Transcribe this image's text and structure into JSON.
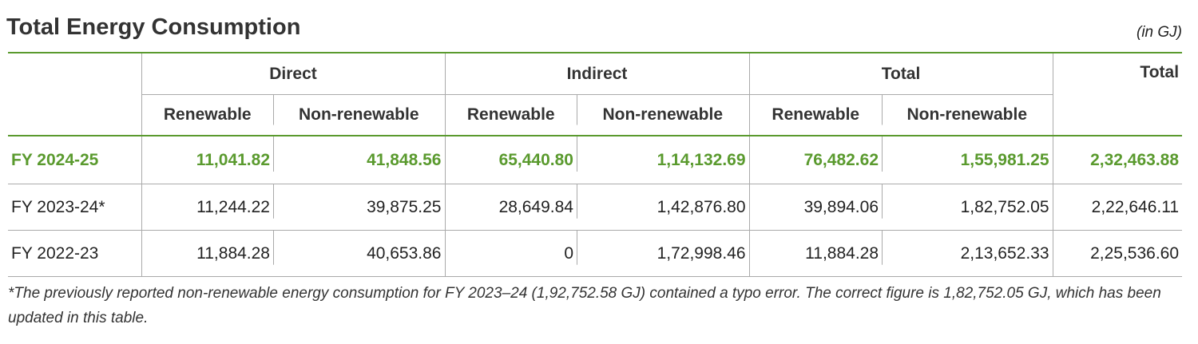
{
  "header": {
    "title": "Total Energy Consumption",
    "unit": "(in GJ)"
  },
  "table": {
    "groups": [
      "Direct",
      "Indirect",
      "Total",
      "Total"
    ],
    "subheaders": [
      "Renewable",
      "Non-renewable",
      "Renewable",
      "Non-renewable",
      "Renewable",
      "Non-renewable"
    ],
    "rows": [
      [
        "FY 2024-25",
        "11,041.82",
        "41,848.56",
        "65,440.80",
        "1,14,132.69",
        "76,482.62",
        "1,55,981.25",
        "2,32,463.88"
      ],
      [
        "FY 2023-24*",
        "11,244.22",
        "39,875.25",
        "28,649.84",
        "1,42,876.80",
        "39,894.06",
        "1,82,752.05",
        "2,22,646.11"
      ],
      [
        "FY 2022-23",
        "11,884.28",
        "40,653.86",
        "0",
        "1,72,998.46",
        "11,884.28",
        "2,13,652.33",
        "2,25,536.60"
      ]
    ]
  },
  "footnote": "*The previously reported non-renewable energy consumption for FY 2023–24 (1,92,752.58 GJ) contained a typo error. The correct figure is 1,82,752.05 GJ, which has been updated in this table."
}
